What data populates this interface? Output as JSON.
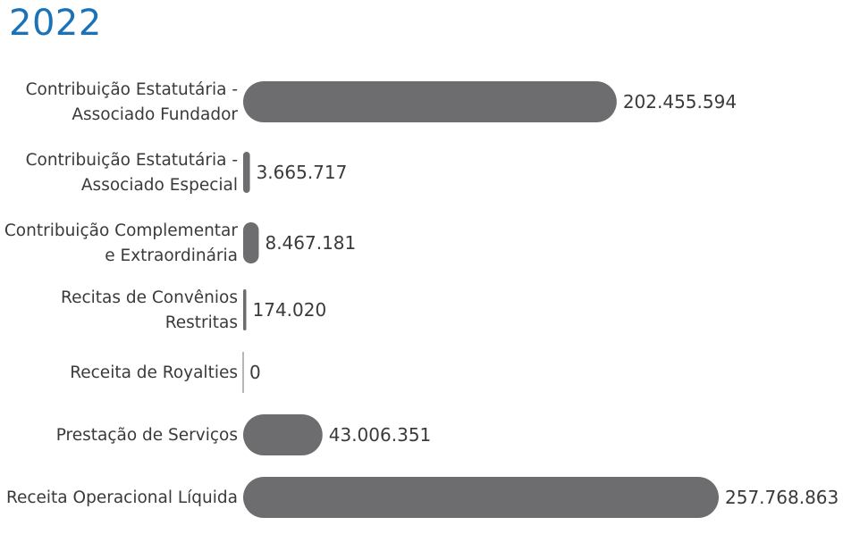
{
  "title": "2022",
  "colors": {
    "title": "#1a73b8",
    "bar": "#6d6d70",
    "text": "#3a3a3a",
    "axis": "#6d6d70"
  },
  "chart_data": {
    "type": "bar",
    "orientation": "horizontal",
    "title": "2022",
    "categories": [
      [
        "Contribuição Estatutária -",
        "Associado Fundador"
      ],
      [
        "Contribuição Estatutária -",
        "Associado  Especial"
      ],
      [
        "Contribuição Complementar",
        "e Extraordinária"
      ],
      [
        "Recitas de Convênios",
        "Restritas"
      ],
      [
        "Receita de Royalties"
      ],
      [
        "Prestação de Serviços"
      ],
      [
        "Receita Operacional Líquida"
      ]
    ],
    "values": [
      202455594,
      3665717,
      8467181,
      174020,
      0,
      43006351,
      257768863
    ],
    "value_labels": [
      "202.455.594",
      "3.665.717",
      "8.467.181",
      "174.020",
      "0",
      "43.006.351",
      "257.768.863"
    ],
    "xlim": [
      0,
      257768863
    ],
    "grid": false,
    "legend": "none"
  }
}
